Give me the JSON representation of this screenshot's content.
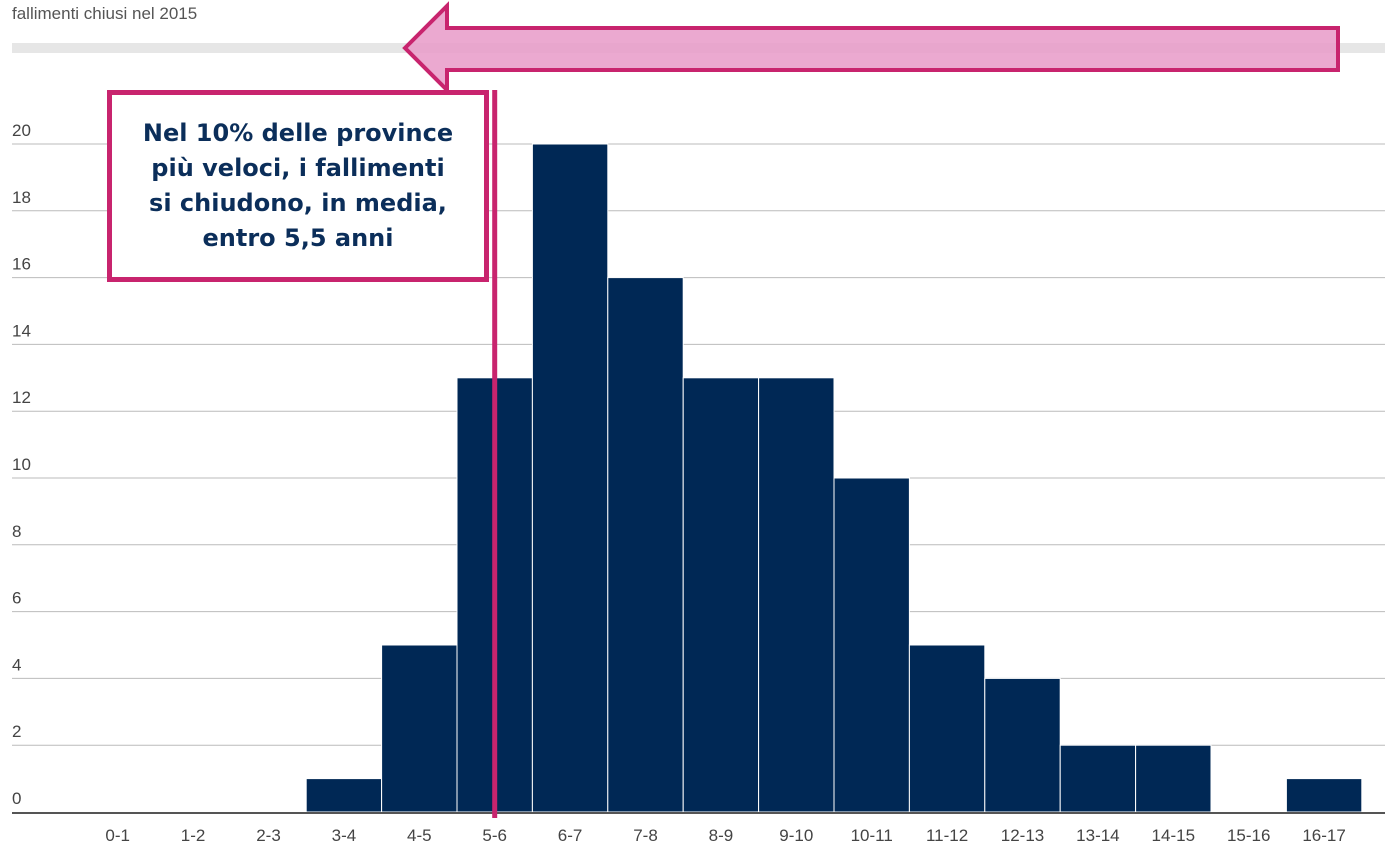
{
  "subtitle": "fallimenti chiusi nel 2015",
  "annotation": {
    "text": "Nel 10% delle province\npiù veloci,  i fallimenti\nsi chiudono, in media,\nentro 5,5 anni",
    "marker_x": 5.5
  },
  "colors": {
    "bar": "#002855",
    "bar_border": "#ffffff",
    "annotation": "#c8246e",
    "arrow_fill": "#e79ac8",
    "grid": "#bbbbbb",
    "band": "#e6e6e6"
  },
  "chart_data": {
    "type": "bar",
    "title": "",
    "xlabel": "",
    "ylabel": "",
    "categories": [
      "0-1",
      "1-2",
      "2-3",
      "3-4",
      "4-5",
      "5-6",
      "6-7",
      "7-8",
      "8-9",
      "9-10",
      "10-11",
      "11-12",
      "12-13",
      "13-14",
      "14-15",
      "15-16",
      "16-17"
    ],
    "values": [
      0,
      0,
      0,
      1,
      5,
      13,
      20,
      16,
      13,
      13,
      10,
      5,
      4,
      2,
      2,
      0,
      1
    ],
    "yticks": [
      0,
      2,
      4,
      6,
      8,
      10,
      12,
      14,
      16,
      18,
      20
    ],
    "ylim": [
      0,
      20
    ],
    "grid": true,
    "legend": "none"
  }
}
